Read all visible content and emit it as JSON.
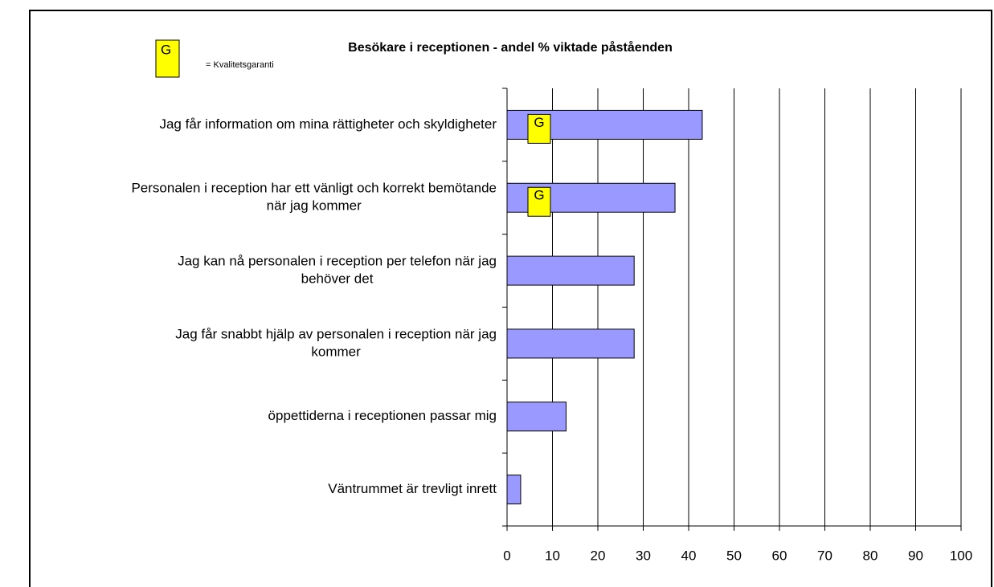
{
  "chart_data": {
    "type": "bar",
    "orientation": "horizontal",
    "title": "Besökare i receptionen - andel % viktade påståenden",
    "legend": {
      "symbol": "G",
      "text": "= Kvalitetsgaranti"
    },
    "categories": [
      [
        "Jag får information om mina rättigheter och skyldigheter"
      ],
      [
        "Personalen i reception har ett vänligt och korrekt bemötande",
        "när jag kommer"
      ],
      [
        "Jag kan nå personalen i reception per telefon när jag",
        "behöver det"
      ],
      [
        "Jag får snabbt hjälp av personalen i reception när jag",
        "kommer"
      ],
      [
        "öppettiderna i receptionen passar mig"
      ],
      [
        "Väntrummet är trevligt inrett"
      ]
    ],
    "values": [
      43,
      37,
      28,
      28,
      13,
      3
    ],
    "guarantee_marks": [
      "G",
      "G",
      null,
      null,
      null,
      null
    ],
    "color": "#9999ff",
    "marker_color": "#ffff00",
    "xlim": [
      0,
      100
    ],
    "xticks": [
      0,
      10,
      20,
      30,
      40,
      50,
      60,
      70,
      80,
      90,
      100
    ],
    "grid": true
  }
}
